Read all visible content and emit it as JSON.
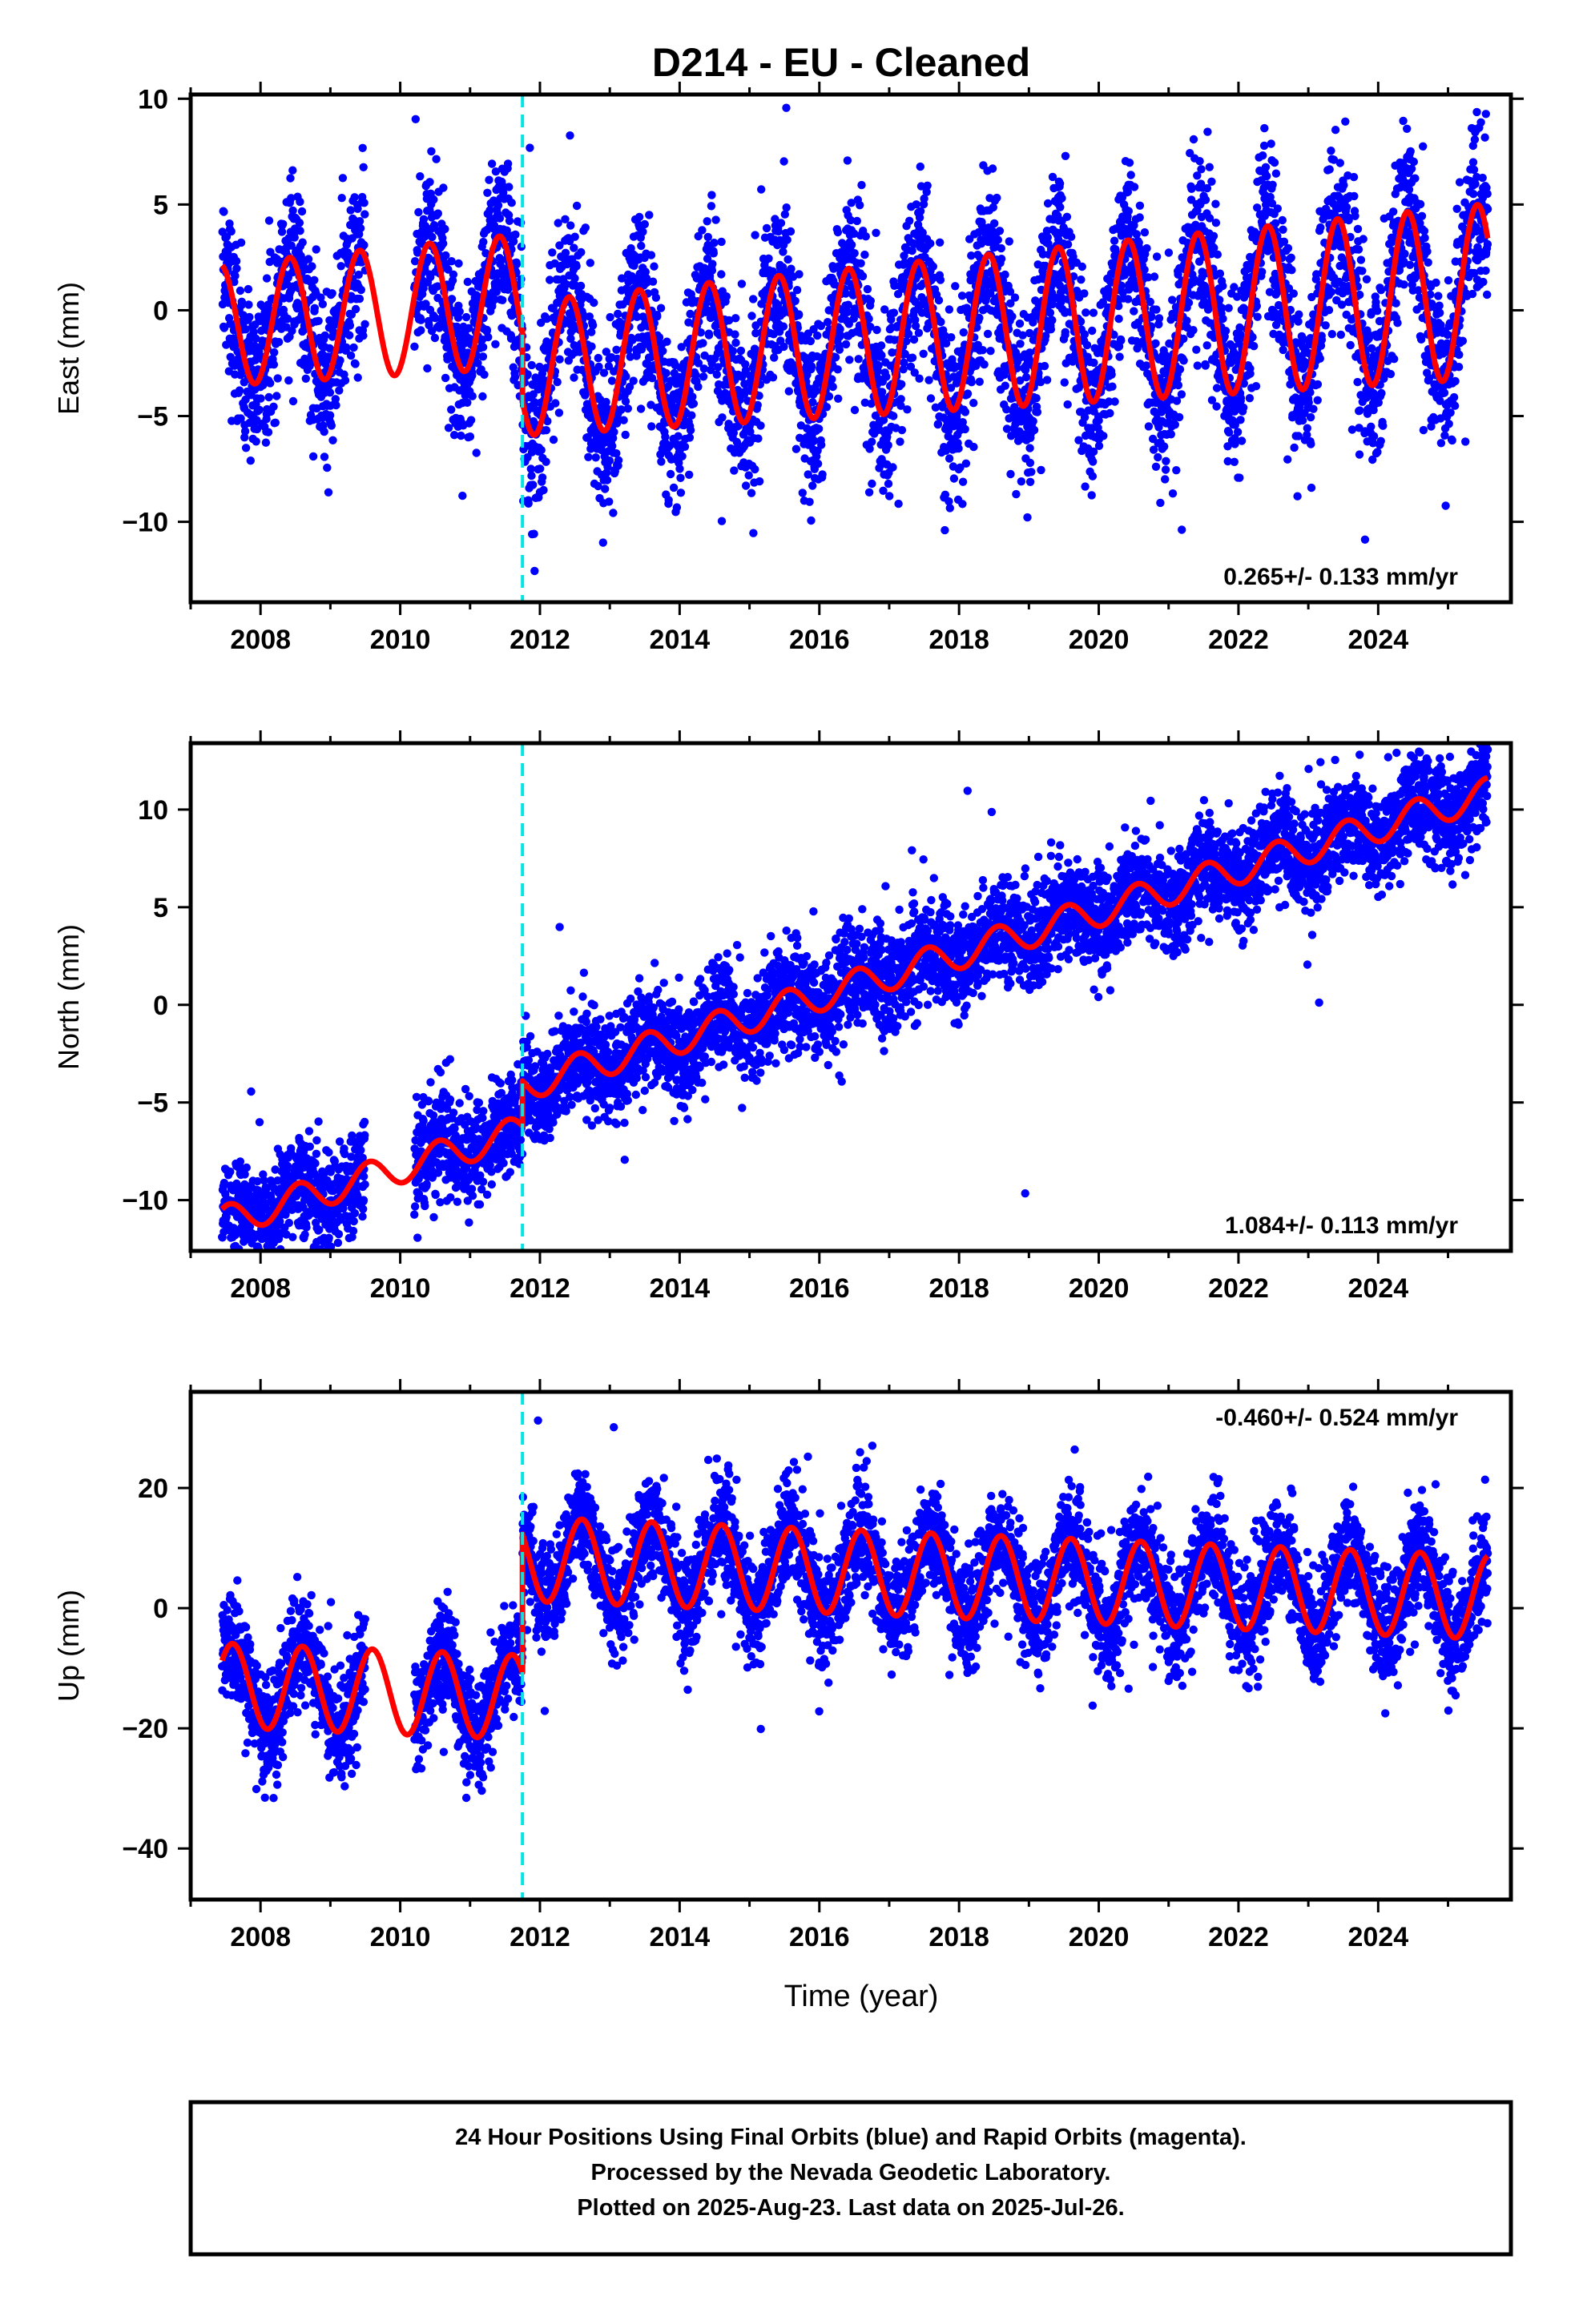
{
  "title": "D214  - EU - Cleaned",
  "x_axis_label": "Time (year)",
  "colors": {
    "points": "#0000ff",
    "model": "#ff0000",
    "offset_marker": "#00e5e5",
    "frame": "#000000"
  },
  "footer": {
    "line1": "24 Hour Positions Using Final Orbits (blue) and Rapid Orbits (magenta).",
    "line2": "Processed by the Nevada Geodetic Laboratory.",
    "line3": "Plotted on 2025-Aug-23. Last data on 2025-Jul-26."
  },
  "chart_data": [
    {
      "type": "scatter",
      "ylabel": "East (mm)",
      "xlim": [
        2007.0,
        2025.9
      ],
      "ylim": [
        -13.8,
        10.2
      ],
      "xticks": [
        "2008",
        "2010",
        "2012",
        "2014",
        "2016",
        "2018",
        "2020",
        "2022",
        "2024"
      ],
      "yticks": [
        "10",
        "5",
        "0",
        "-5",
        "-10"
      ],
      "ytick_values": [
        10,
        5,
        0,
        -5,
        -10
      ],
      "offset_epoch": 2011.75,
      "rate_text": "0.265+/- 0.133 mm/yr",
      "rate_position": "bottom-right",
      "model": {
        "rate_mm_per_yr": 0.265,
        "intercept_pre": 1.7,
        "intercept_post": -1.5,
        "annual_amplitude": 3.5,
        "annual_amplitude_change_per_yr": 0.07,
        "annual_peak_phase_yr": 0.42,
        "noise_sigma": 2.0,
        "data_start": 2007.45,
        "data_end": 2025.57,
        "gap": [
          2009.5,
          2010.2
        ]
      }
    },
    {
      "type": "scatter",
      "ylabel": "North (mm)",
      "xlim": [
        2007.0,
        2025.9
      ],
      "ylim": [
        -12.6,
        13.4
      ],
      "xticks": [
        "2008",
        "2010",
        "2012",
        "2014",
        "2016",
        "2018",
        "2020",
        "2022",
        "2024"
      ],
      "yticks": [
        "10",
        "5",
        "0",
        "-5",
        "-10"
      ],
      "ytick_values": [
        10,
        5,
        0,
        -5,
        -10
      ],
      "offset_epoch": 2011.75,
      "rate_text": "1.084+/- 0.113 mm/yr",
      "rate_position": "bottom-right",
      "model": {
        "rate_mm_per_yr": 1.084,
        "intercept_pre": -1.3,
        "intercept_post": 1.0,
        "annual_amplitude": 0.8,
        "annual_amplitude_change_per_yr": 0.0,
        "annual_peak_phase_yr": 0.55,
        "noise_sigma": 1.3,
        "data_start": 2007.45,
        "data_end": 2025.57,
        "gap": [
          2009.5,
          2010.2
        ]
      }
    },
    {
      "type": "scatter",
      "ylabel": "Up (mm)",
      "xlim": [
        2007.0,
        2025.9
      ],
      "ylim": [
        -48.5,
        36.0
      ],
      "xticks": [
        "2008",
        "2010",
        "2012",
        "2014",
        "2016",
        "2018",
        "2020",
        "2022",
        "2024"
      ],
      "yticks": [
        "20",
        "0",
        "-20",
        "-40"
      ],
      "ytick_values": [
        20,
        0,
        -20,
        -40
      ],
      "offset_epoch": 2011.75,
      "rate_text": "-0.460+/- 0.524 mm/yr",
      "rate_position": "top-right",
      "model": {
        "rate_mm_per_yr": -0.46,
        "intercept_pre": -17.0,
        "intercept_post": 6.0,
        "annual_amplitude": 7.0,
        "annual_amplitude_change_per_yr": 0.0,
        "annual_peak_phase_yr": 0.6,
        "noise_sigma": 4.5,
        "data_start": 2007.45,
        "data_end": 2025.57,
        "gap": [
          2009.5,
          2010.2
        ]
      }
    }
  ]
}
